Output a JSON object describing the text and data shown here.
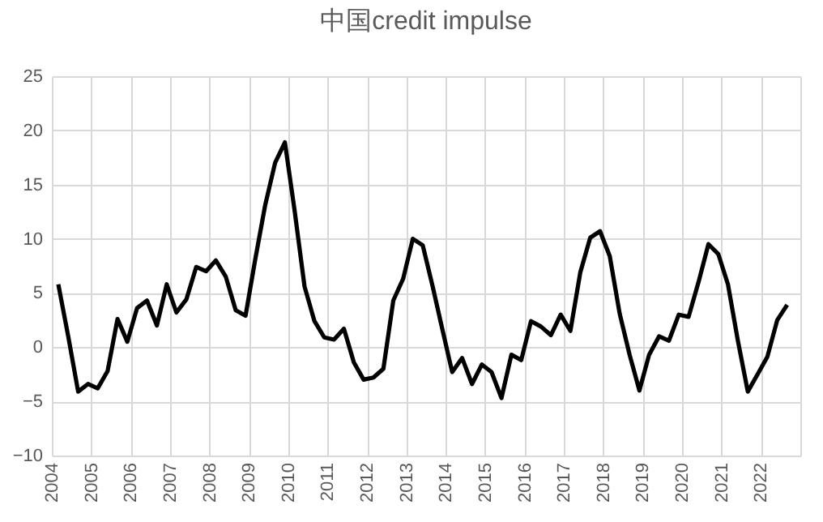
{
  "chart_data": {
    "type": "line",
    "title": "中国credit impulse",
    "x": [
      "2004-03",
      "2004-06",
      "2004-09",
      "2004-12",
      "2005-03",
      "2005-06",
      "2005-09",
      "2005-12",
      "2006-03",
      "2006-06",
      "2006-09",
      "2006-12",
      "2007-03",
      "2007-06",
      "2007-09",
      "2007-12",
      "2008-03",
      "2008-06",
      "2008-09",
      "2008-12",
      "2009-03",
      "2009-06",
      "2009-09",
      "2009-12",
      "2010-03",
      "2010-06",
      "2010-09",
      "2010-12",
      "2011-03",
      "2011-06",
      "2011-09",
      "2011-12",
      "2012-03",
      "2012-06",
      "2012-09",
      "2012-12",
      "2013-03",
      "2013-06",
      "2013-09",
      "2013-12",
      "2014-03",
      "2014-06",
      "2014-09",
      "2014-12",
      "2015-03",
      "2015-06",
      "2015-09",
      "2015-12",
      "2016-03",
      "2016-06",
      "2016-09",
      "2016-12",
      "2017-03",
      "2017-06",
      "2017-09",
      "2017-12",
      "2018-03",
      "2018-06",
      "2018-09",
      "2018-12",
      "2019-03",
      "2019-06",
      "2019-09",
      "2019-12",
      "2020-03",
      "2020-06",
      "2020-09",
      "2020-12",
      "2021-03",
      "2021-06",
      "2021-09",
      "2021-12",
      "2022-03",
      "2022-06",
      "2022-09"
    ],
    "series": [
      {
        "color": "#000000",
        "values": [
          5.8,
          1,
          -4.1,
          -3.4,
          -3.8,
          -2.2,
          2.6,
          0.5,
          3.6,
          4.3,
          2.0,
          5.8,
          3.2,
          4.4,
          7.4,
          7.0,
          8.0,
          6.5,
          3.4,
          2.9,
          8.1,
          13.1,
          17.0,
          18.9,
          12.6,
          5.6,
          2.4,
          0.9,
          0.7,
          1.7,
          -1.4,
          -3.0,
          -2.8,
          -2.0,
          4.3,
          6.3,
          10.0,
          9.4,
          5.6,
          1.6,
          -2.3,
          -1.0,
          -3.4,
          -1.6,
          -2.3,
          -4.7,
          -0.7,
          -1.2,
          2.4,
          1.9,
          1.1,
          3.0,
          1.5,
          6.9,
          10.1,
          10.7,
          8.4,
          3.1,
          -0.7,
          -4.0,
          -0.7,
          1.0,
          0.6,
          3.0,
          2.8,
          6.0,
          9.5,
          8.6,
          5.8,
          0.6,
          -4.1,
          -2.5,
          -0.9,
          2.5,
          3.9
        ]
      }
    ],
    "xlim": [
      "2004",
      "2023"
    ],
    "xticks": [
      "2004",
      "2005",
      "2006",
      "2007",
      "2008",
      "2009",
      "2010",
      "2011",
      "2012",
      "2013",
      "2014",
      "2015",
      "2016",
      "2017",
      "2018",
      "2019",
      "2020",
      "2021",
      "2022",
      {
        "value": "2023",
        "label": null
      }
    ],
    "ylim": [
      -10,
      25
    ],
    "yticks": [
      -10,
      -5,
      0,
      5,
      10,
      15,
      20,
      25
    ],
    "grid": true,
    "line_style": "solid"
  }
}
